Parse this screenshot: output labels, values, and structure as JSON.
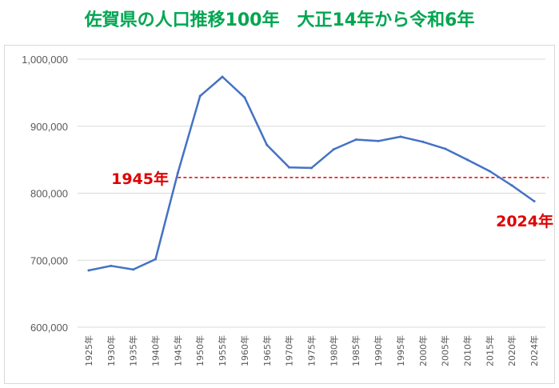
{
  "chart_data": {
    "type": "line",
    "title": "佐賀県の人口推移100年　大正14年から令和6年",
    "title_color": "#00a651",
    "xlabel": "",
    "ylabel": "",
    "ylim": [
      600000,
      1000000
    ],
    "yticks": [
      600000,
      700000,
      800000,
      900000,
      1000000
    ],
    "ytick_labels": [
      "600,000",
      "700,000",
      "800,000",
      "900,000",
      "1,000,000"
    ],
    "grid": true,
    "legend": "none",
    "categories": [
      "1925年",
      "1930年",
      "1935年",
      "1940年",
      "1945年",
      "1950年",
      "1955年",
      "1960年",
      "1965年",
      "1970年",
      "1975年",
      "1980年",
      "1985年",
      "1990年",
      "1995年",
      "2000年",
      "2005年",
      "2010年",
      "2015年",
      "2020年",
      "2024年"
    ],
    "series": [
      {
        "color": "#4472c4",
        "values": [
          684831,
          691565,
          686117,
          701517,
          830431,
          945082,
          973749,
          942874,
          871885,
          838468,
          837674,
          865574,
          880013,
          877851,
          884316,
          876654,
          866369,
          849788,
          832832,
          811442,
          787996
        ]
      }
    ],
    "reference_line": {
      "value": 823500,
      "color": "#e00000",
      "style": "dashed",
      "start_category": "1945年"
    },
    "annotations": [
      {
        "text": "1945年",
        "color": "#e00000"
      },
      {
        "text": "2024年",
        "color": "#e00000"
      }
    ]
  }
}
